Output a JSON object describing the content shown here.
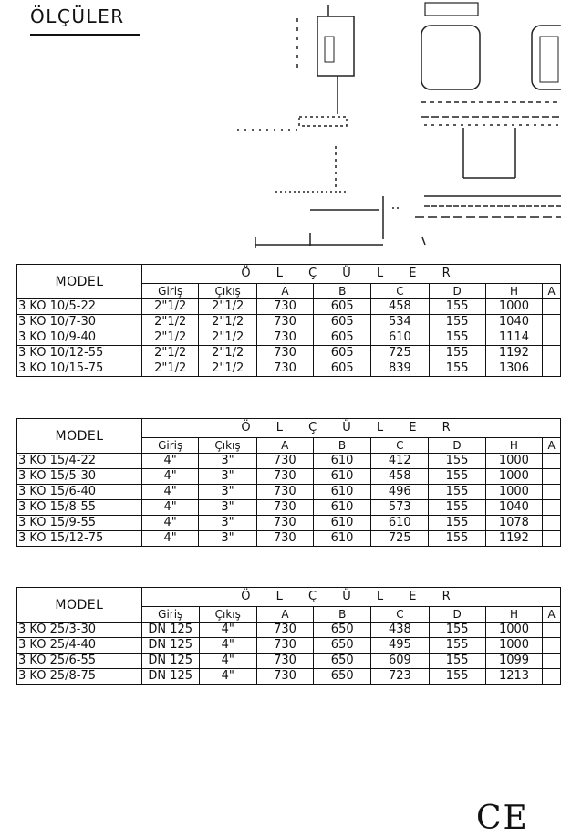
{
  "section_title": "ÖLÇÜLER",
  "headers": {
    "model": "MODEL",
    "dimensions": "Ö L Ç Ü L E R",
    "columns": [
      "Giriş",
      "Çıkış",
      "A",
      "B",
      "C",
      "D",
      "H",
      "A"
    ]
  },
  "tables": [
    {
      "rows": [
        [
          "3 KO 10/5-22",
          "2\"1/2",
          "2\"1/2",
          "730",
          "605",
          "458",
          "155",
          "1000"
        ],
        [
          "3 KO 10/7-30",
          "2\"1/2",
          "2\"1/2",
          "730",
          "605",
          "534",
          "155",
          "1040"
        ],
        [
          "3 KO 10/9-40",
          "2\"1/2",
          "2\"1/2",
          "730",
          "605",
          "610",
          "155",
          "1114"
        ],
        [
          "3 KO 10/12-55",
          "2\"1/2",
          "2\"1/2",
          "730",
          "605",
          "725",
          "155",
          "1192"
        ],
        [
          "3 KO 10/15-75",
          "2\"1/2",
          "2\"1/2",
          "730",
          "605",
          "839",
          "155",
          "1306"
        ]
      ]
    },
    {
      "rows": [
        [
          "3 KO 15/4-22",
          "4\"",
          "3\"",
          "730",
          "610",
          "412",
          "155",
          "1000"
        ],
        [
          "3 KO 15/5-30",
          "4\"",
          "3\"",
          "730",
          "610",
          "458",
          "155",
          "1000"
        ],
        [
          "3 KO 15/6-40",
          "4\"",
          "3\"",
          "730",
          "610",
          "496",
          "155",
          "1000"
        ],
        [
          "3 KO 15/8-55",
          "4\"",
          "3\"",
          "730",
          "610",
          "573",
          "155",
          "1040"
        ],
        [
          "3 KO 15/9-55",
          "4\"",
          "3\"",
          "730",
          "610",
          "610",
          "155",
          "1078"
        ],
        [
          "3 KO 15/12-75",
          "4\"",
          "3\"",
          "730",
          "610",
          "725",
          "155",
          "1192"
        ]
      ]
    },
    {
      "rows": [
        [
          "3 KO 25/3-30",
          "DN 125",
          "4\"",
          "730",
          "650",
          "438",
          "155",
          "1000"
        ],
        [
          "3 KO 25/4-40",
          "DN 125",
          "4\"",
          "730",
          "650",
          "495",
          "155",
          "1000"
        ],
        [
          "3 KO 25/6-55",
          "DN 125",
          "4\"",
          "730",
          "650",
          "609",
          "155",
          "1099"
        ],
        [
          "3 KO 25/8-75",
          "DN 125",
          "4\"",
          "730",
          "650",
          "723",
          "155",
          "1213"
        ]
      ]
    }
  ],
  "ce_mark": "CE"
}
